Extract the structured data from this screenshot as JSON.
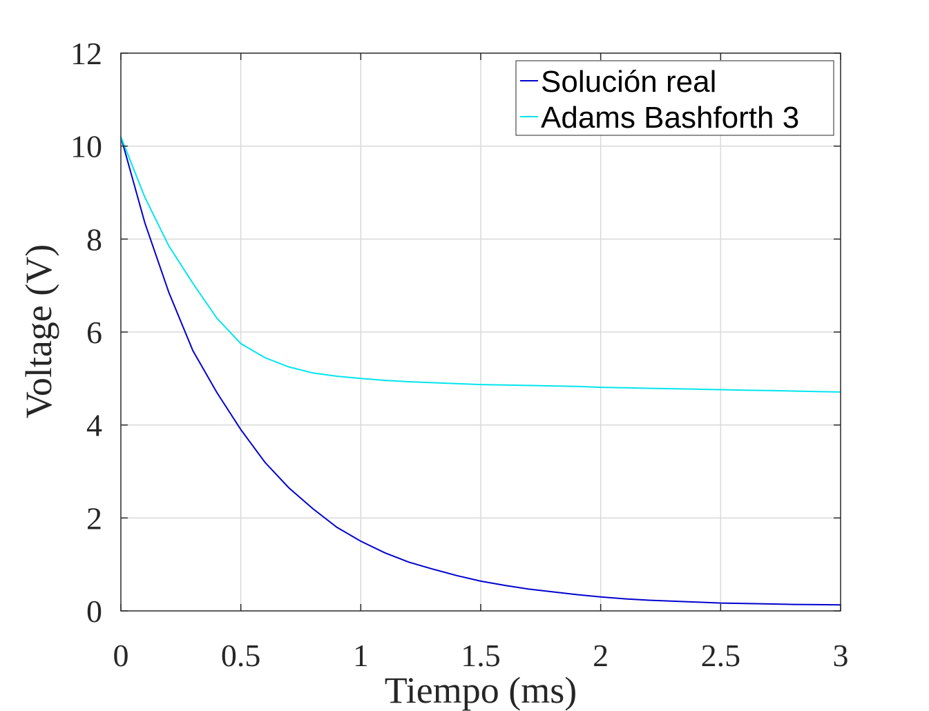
{
  "chart_data": {
    "type": "line",
    "title": "",
    "xlabel": "Tiempo (ms)",
    "ylabel": "Voltage (V)",
    "xlim": [
      0,
      3
    ],
    "ylim": [
      0,
      12
    ],
    "xticks": [
      0,
      0.5,
      1,
      1.5,
      2,
      2.5,
      3
    ],
    "xtick_labels": [
      "0",
      "0.5",
      "1",
      "1.5",
      "2",
      "2.5",
      "3"
    ],
    "yticks": [
      0,
      2,
      4,
      6,
      8,
      10,
      12
    ],
    "ytick_labels": [
      "0",
      "2",
      "4",
      "6",
      "8",
      "10",
      "12"
    ],
    "grid": true,
    "legend_position": "top-right",
    "x": [
      0,
      0.1,
      0.2,
      0.3,
      0.4,
      0.5,
      0.6,
      0.7,
      0.8,
      0.9,
      1.0,
      1.1,
      1.2,
      1.3,
      1.4,
      1.5,
      1.6,
      1.7,
      1.8,
      1.9,
      2.0,
      2.1,
      2.2,
      2.3,
      2.4,
      2.5,
      2.6,
      2.7,
      2.8,
      2.9,
      3.0
    ],
    "series": [
      {
        "name": "Solución real",
        "color": "#0000cd",
        "values": [
          10.2,
          8.35,
          6.85,
          5.6,
          4.7,
          3.9,
          3.2,
          2.65,
          2.2,
          1.8,
          1.5,
          1.25,
          1.05,
          0.9,
          0.76,
          0.64,
          0.55,
          0.47,
          0.41,
          0.35,
          0.3,
          0.26,
          0.23,
          0.21,
          0.19,
          0.17,
          0.16,
          0.15,
          0.14,
          0.135,
          0.13
        ]
      },
      {
        "name": "Adams Bashforth 3",
        "color": "#00e5ee",
        "values": [
          10.2,
          8.9,
          7.85,
          7.05,
          6.3,
          5.75,
          5.45,
          5.25,
          5.12,
          5.05,
          5.0,
          4.96,
          4.93,
          4.91,
          4.89,
          4.87,
          4.86,
          4.85,
          4.84,
          4.83,
          4.81,
          4.8,
          4.79,
          4.78,
          4.77,
          4.76,
          4.75,
          4.74,
          4.73,
          4.72,
          4.71
        ]
      }
    ]
  }
}
